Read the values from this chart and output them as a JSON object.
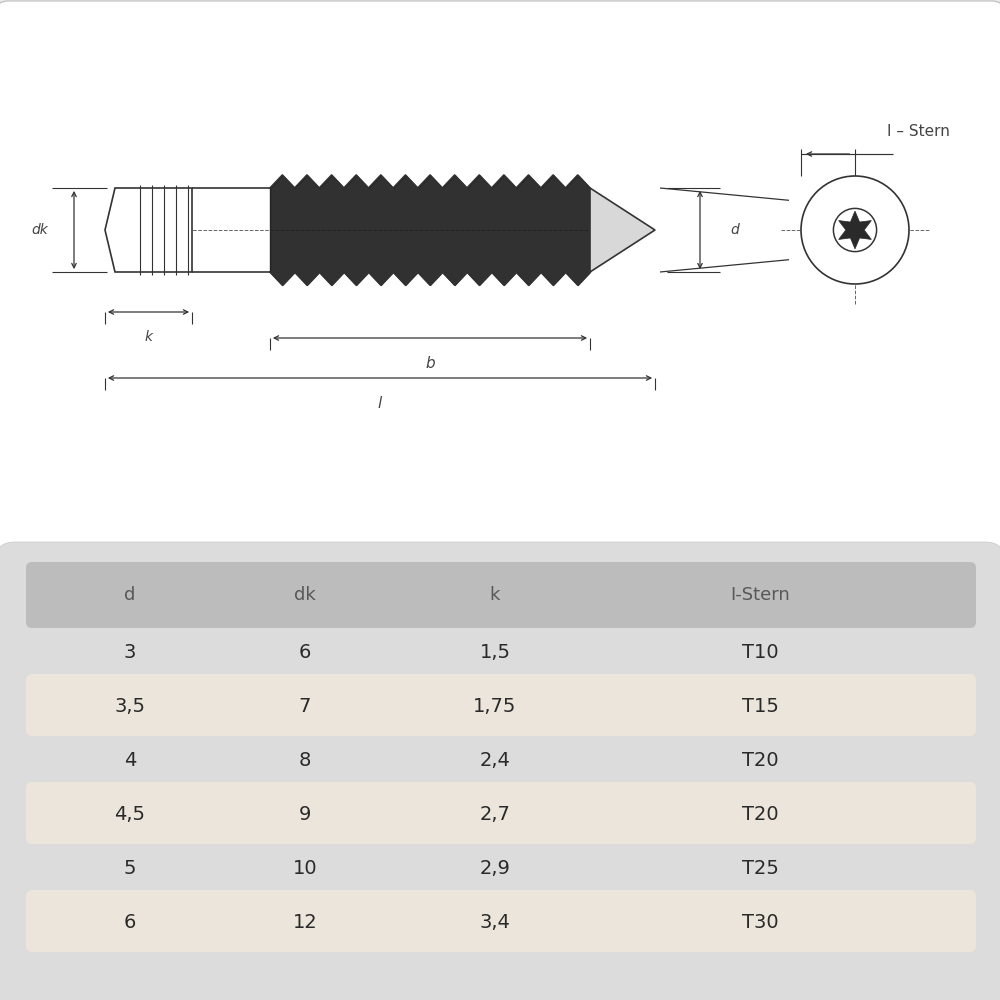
{
  "bg_color": "#ebebeb",
  "table_bg": "#e0e0e0",
  "row_highlight": "#ece5db",
  "header_bg": "#c0c0c0",
  "line_color": "#333333",
  "text_color": "#444444",
  "table_headers": [
    "d",
    "dk",
    "k",
    "I-Stern"
  ],
  "table_rows": [
    [
      "3",
      "6",
      "1,5",
      "T10"
    ],
    [
      "3,5",
      "7",
      "1,75",
      "T15"
    ],
    [
      "4",
      "8",
      "2,4",
      "T20"
    ],
    [
      "4,5",
      "9",
      "2,7",
      "T20"
    ],
    [
      "5",
      "10",
      "2,9",
      "T25"
    ],
    [
      "6",
      "12",
      "3,4",
      "T30"
    ]
  ],
  "highlighted_rows": [
    1,
    3,
    5
  ],
  "label_dk": "dk",
  "label_k": "k",
  "label_b": "b",
  "label_l": "l",
  "label_d": "d",
  "label_istern": "I – Stern"
}
